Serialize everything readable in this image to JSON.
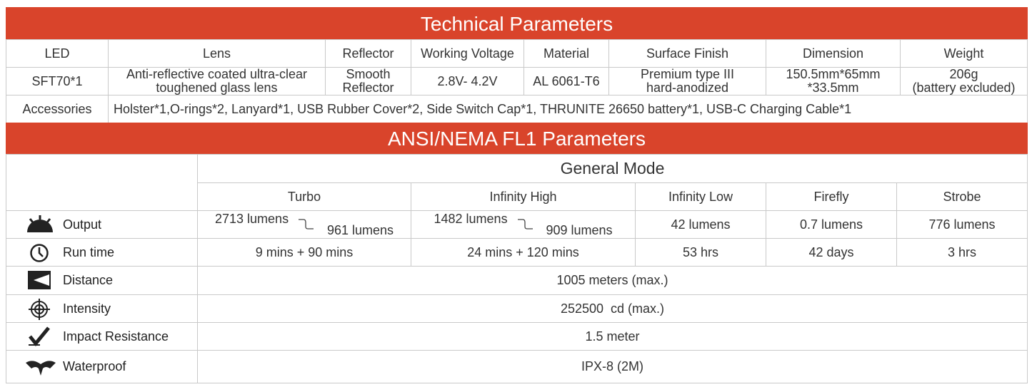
{
  "tech": {
    "title": "Technical Parameters",
    "columns": [
      "LED",
      "Lens",
      "Reflector",
      "Working Voltage",
      "Material",
      "Surface Finish",
      "Dimension",
      "Weight"
    ],
    "values": [
      "SFT70*1",
      [
        "Anti-reflective coated ultra-clear",
        "toughened glass lens"
      ],
      [
        "Smooth",
        "Reflector"
      ],
      "2.8V- 4.2V",
      "AL 6061-T6",
      [
        "Premium type III",
        "hard-anodized"
      ],
      [
        "150.5mm*65mm",
        "*33.5mm"
      ],
      [
        "206g",
        "(battery excluded)"
      ]
    ],
    "accessories": {
      "label": "Accessories",
      "text": "Holster*1,O-rings*2, Lanyard*1, USB Rubber Cover*2, Side Switch Cap*1, THRUNITE 26650 battery*1, USB-C Charging Cable*1"
    }
  },
  "fl1": {
    "title": "ANSI/NEMA FL1 Parameters",
    "group": "General Mode",
    "modes": [
      "Turbo",
      "Infinity High",
      "Infinity Low",
      "Firefly",
      "Strobe"
    ],
    "rows": [
      {
        "label": "Output",
        "values": [
          {
            "high": "2713 lumens",
            "low": "961 lumens"
          },
          {
            "high": "1482 lumens",
            "low": "909 lumens"
          },
          "42 lumens",
          "0.7 lumens",
          "776 lumens"
        ]
      },
      {
        "label": "Run time",
        "values": [
          "9 mins + 90 mins",
          "24 mins + 120 mins",
          "53 hrs",
          "42 days",
          "3 hrs"
        ]
      },
      {
        "label": "Distance",
        "value": "1005 meters (max.)"
      },
      {
        "label": "Intensity",
        "value": "252500  cd (max.)"
      },
      {
        "label": "Impact Resistance",
        "value": "1.5 meter"
      },
      {
        "label": "Waterproof",
        "value": "IPX-8 (2M)"
      }
    ]
  }
}
